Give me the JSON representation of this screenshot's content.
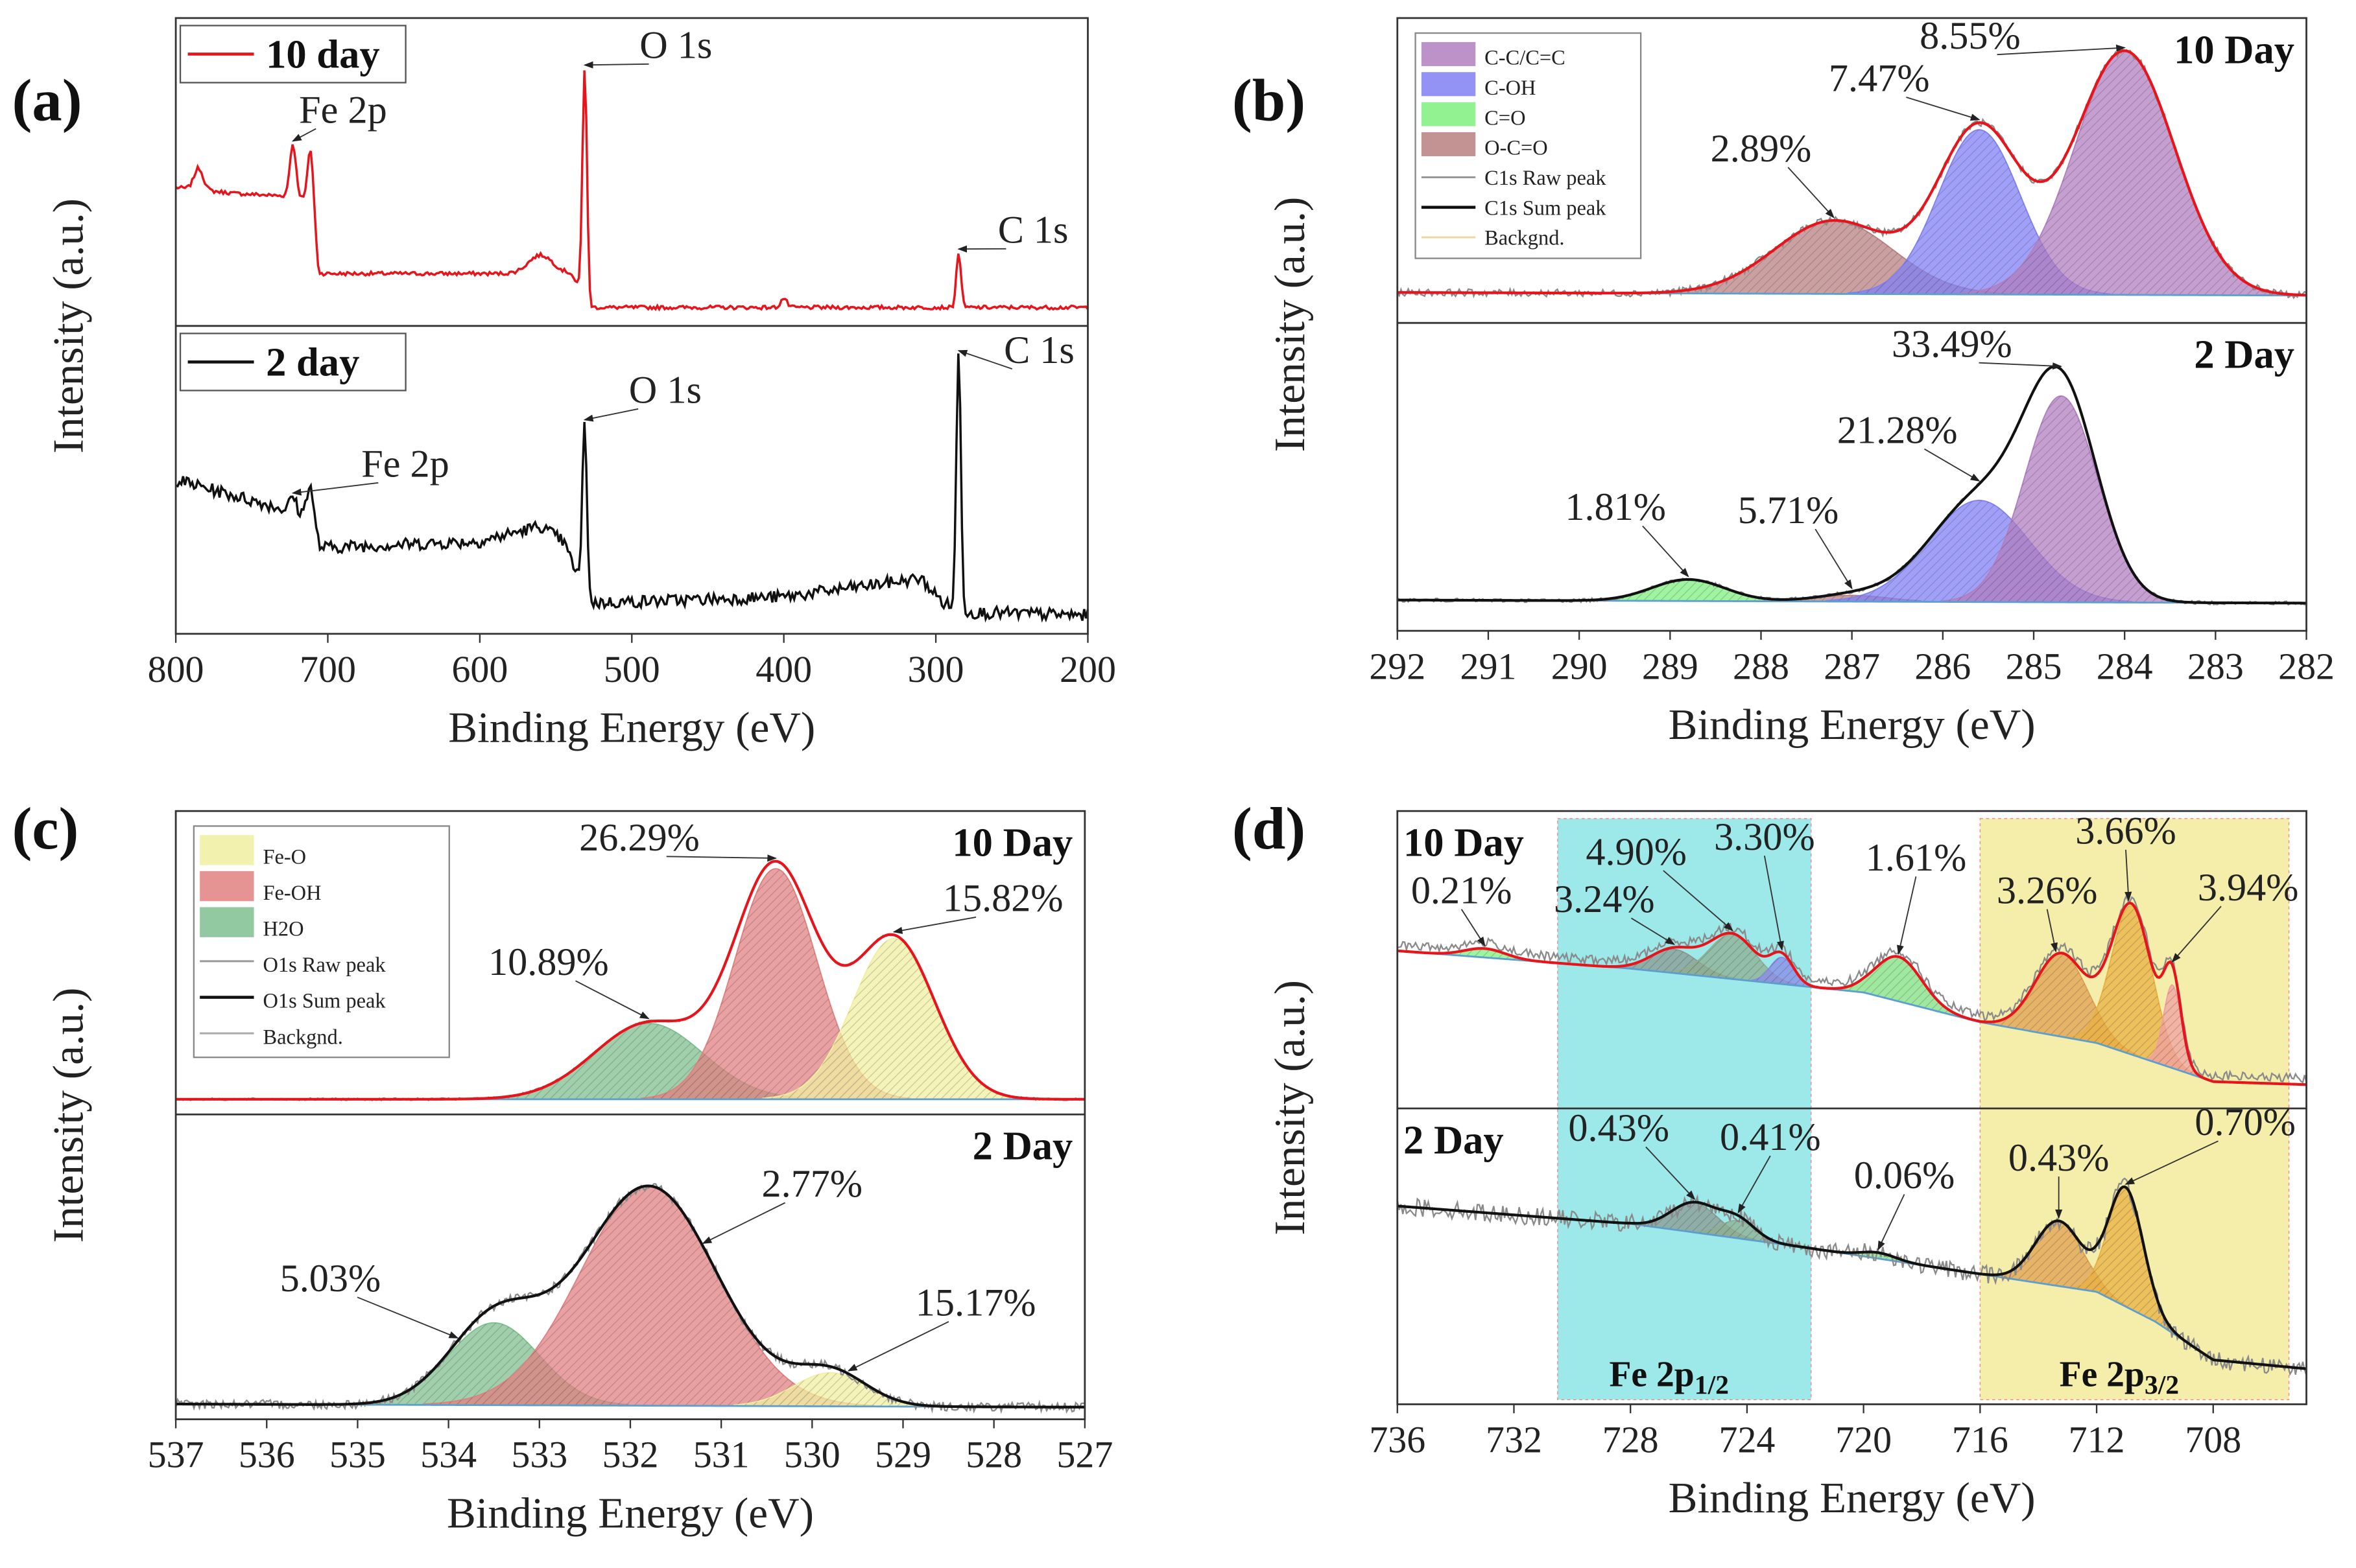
{
  "chart_data": [
    {
      "panel": "(a)",
      "type": "line",
      "xlabel": "Binding Energy (eV)",
      "ylabel": "Intensity (a.u.)",
      "xlim": [
        800,
        200
      ],
      "xticks": [
        800,
        700,
        600,
        500,
        400,
        300,
        200
      ],
      "legend": [
        {
          "name": "10 day",
          "color": "#e8141c",
          "kind": "line"
        },
        {
          "name": "2 day",
          "color": "#111111",
          "kind": "line"
        }
      ],
      "subplots": [
        {
          "name": "10 day",
          "tag": "",
          "line_color": "#e8141c",
          "noise": 0.006,
          "raw": false,
          "baseline": [
            [
              800,
              0.45
            ],
            [
              760,
              0.43
            ],
            [
              720,
              0.42
            ],
            [
              712,
              0.4
            ],
            [
              706,
              0.17
            ],
            [
              540,
              0.17
            ],
            [
              528,
              0.06
            ],
            [
              200,
              0.06
            ]
          ],
          "peaks": [
            {
              "center": 785,
              "amp": 0.07,
              "sigma": 3,
              "color": ""
            },
            {
              "center": 723,
              "amp": 0.17,
              "sigma": 2,
              "color": ""
            },
            {
              "center": 711,
              "amp": 0.2,
              "sigma": 2,
              "color": ""
            },
            {
              "center": 560,
              "amp": 0.06,
              "sigma": 8,
              "color": ""
            },
            {
              "center": 531,
              "amp": 0.75,
              "sigma": 1.5,
              "color": ""
            },
            {
              "center": 400,
              "amp": 0.03,
              "sigma": 2,
              "color": ""
            },
            {
              "center": 285,
              "amp": 0.18,
              "sigma": 1.5,
              "color": ""
            }
          ],
          "annotations": [
            {
              "text": "Fe 2p",
              "x": 690,
              "y": 0.66,
              "at": 723
            },
            {
              "text": "O 1s",
              "x": 471,
              "y": 0.87,
              "at": 531
            },
            {
              "text": "C 1s",
              "x": 236,
              "y": 0.27,
              "at": 285
            }
          ]
        },
        {
          "name": "2 day",
          "tag": "",
          "line_color": "#111111",
          "noise": 0.02,
          "raw": false,
          "baseline": [
            [
              800,
              0.5
            ],
            [
              710,
              0.38
            ],
            [
              705,
              0.28
            ],
            [
              600,
              0.3
            ],
            [
              560,
              0.35
            ],
            [
              545,
              0.3
            ],
            [
              528,
              0.1
            ],
            [
              400,
              0.12
            ],
            [
              310,
              0.18
            ],
            [
              295,
              0.1
            ],
            [
              280,
              0.07
            ],
            [
              200,
              0.06
            ]
          ],
          "peaks": [
            {
              "center": 723,
              "amp": 0.05,
              "sigma": 2,
              "color": ""
            },
            {
              "center": 712,
              "amp": 0.1,
              "sigma": 2,
              "color": ""
            },
            {
              "center": 531,
              "amp": 0.55,
              "sigma": 1.5,
              "color": ""
            },
            {
              "center": 285,
              "amp": 0.83,
              "sigma": 1.5,
              "color": ""
            }
          ],
          "annotations": [
            {
              "text": "Fe 2p",
              "x": 649,
              "y": 0.51,
              "at": 723
            },
            {
              "text": "O 1s",
              "x": 478,
              "y": 0.75,
              "at": 531
            },
            {
              "text": "C 1s",
              "x": 232,
              "y": 0.88,
              "at": 285
            }
          ]
        }
      ]
    },
    {
      "panel": "(b)",
      "type": "area",
      "xlabel": "Binding Energy (eV)",
      "ylabel": "Intensity (a.u.)",
      "xlim": [
        292,
        282
      ],
      "xticks": [
        292,
        291,
        290,
        289,
        288,
        287,
        286,
        285,
        284,
        283,
        282
      ],
      "legend": [
        {
          "name": "C-C/C=C",
          "color": "#b07fc0",
          "kind": "box"
        },
        {
          "name": "C-OH",
          "color": "#8080f5",
          "kind": "box"
        },
        {
          "name": "C=O",
          "color": "#7ff07f",
          "kind": "box"
        },
        {
          "name": "O-C=O",
          "color": "#b88080",
          "kind": "box"
        },
        {
          "name": "C1s Raw peak",
          "color": "#999999",
          "kind": "line"
        },
        {
          "name": "C1s Sum peak",
          "color": "#111111",
          "kind": "line"
        },
        {
          "name": "Backgnd.",
          "color": "#e8d8a0",
          "kind": "line"
        }
      ],
      "subplots": [
        {
          "name": "10 Day",
          "tag": "10 Day",
          "line_color": "#e8141c",
          "noise": 0.012,
          "raw": true,
          "baseline": [
            [
              292,
              0.1
            ],
            [
              282,
              0.09
            ]
          ],
          "peaks": [
            {
              "center": 287.2,
              "amp": 0.24,
              "sigma": 0.65,
              "color": "#b88080"
            },
            {
              "center": 285.6,
              "amp": 0.54,
              "sigma": 0.45,
              "color": "#8080f5"
            },
            {
              "center": 284.0,
              "amp": 0.8,
              "sigma": 0.55,
              "color": "#b07fc0"
            }
          ],
          "annotations": [
            {
              "text": "8.55%",
              "x": 285.7,
              "y": 0.9,
              "at": 284.0
            },
            {
              "text": "7.47%",
              "x": 286.7,
              "y": 0.76,
              "at": 285.6
            },
            {
              "text": "2.89%",
              "x": 288.0,
              "y": 0.53,
              "at": 287.2
            }
          ]
        },
        {
          "name": "2 Day",
          "tag": "2 Day",
          "line_color": "#111111",
          "noise": 0.006,
          "raw": true,
          "baseline": [
            [
              292,
              0.1
            ],
            [
              282,
              0.09
            ]
          ],
          "peaks": [
            {
              "center": 288.8,
              "amp": 0.07,
              "sigma": 0.4,
              "color": "#7ff07f"
            },
            {
              "center": 287.0,
              "amp": 0.02,
              "sigma": 0.4,
              "color": "#b88080"
            },
            {
              "center": 285.6,
              "amp": 0.33,
              "sigma": 0.55,
              "color": "#8080f5"
            },
            {
              "center": 284.7,
              "amp": 0.67,
              "sigma": 0.4,
              "color": "#b07fc0"
            }
          ],
          "annotations": [
            {
              "text": "33.49%",
              "x": 285.9,
              "y": 0.89,
              "at": 284.7
            },
            {
              "text": "21.28%",
              "x": 286.5,
              "y": 0.61,
              "at": 285.6
            },
            {
              "text": "1.81%",
              "x": 289.6,
              "y": 0.36,
              "at": 288.8
            },
            {
              "text": "5.71%",
              "x": 287.7,
              "y": 0.35,
              "at": 287.0
            }
          ]
        }
      ]
    },
    {
      "panel": "(c)",
      "type": "area",
      "xlabel": "Binding Energy (eV)",
      "ylabel": "Intensity (a.u.)",
      "xlim": [
        537,
        527
      ],
      "xticks": [
        537,
        536,
        535,
        534,
        533,
        532,
        531,
        530,
        529,
        528,
        527
      ],
      "legend": [
        {
          "name": "Fe-O",
          "color": "#f0f0a0",
          "kind": "box"
        },
        {
          "name": "Fe-OH",
          "color": "#e08080",
          "kind": "box"
        },
        {
          "name": "H2O",
          "color": "#7fbf8f",
          "kind": "box"
        },
        {
          "name": "O1s Raw peak",
          "color": "#999999",
          "kind": "line"
        },
        {
          "name": "O1s Sum peak",
          "color": "#111111",
          "kind": "line"
        },
        {
          "name": "Backgnd.",
          "color": "#aaaaaa",
          "kind": "line"
        }
      ],
      "subplots": [
        {
          "name": "10 Day",
          "tag": "10 Day",
          "line_color": "#e8141c",
          "noise": 0.004,
          "raw": true,
          "baseline": [
            [
              537,
              0.05
            ],
            [
              527,
              0.05
            ]
          ],
          "peaks": [
            {
              "center": 531.8,
              "amp": 0.25,
              "sigma": 0.6,
              "color": "#7fbf8f"
            },
            {
              "center": 530.4,
              "amp": 0.76,
              "sigma": 0.45,
              "color": "#e08080"
            },
            {
              "center": 529.1,
              "amp": 0.53,
              "sigma": 0.45,
              "color": "#f0f0a0"
            }
          ],
          "annotations": [
            {
              "text": "26.29%",
              "x": 531.9,
              "y": 0.87,
              "at": 530.4
            },
            {
              "text": "15.82%",
              "x": 527.9,
              "y": 0.67,
              "at": 529.1
            },
            {
              "text": "10.89%",
              "x": 532.9,
              "y": 0.46,
              "at": 531.8
            }
          ]
        },
        {
          "name": "2 Day",
          "tag": "2 Day",
          "line_color": "#111111",
          "noise": 0.015,
          "raw": true,
          "baseline": [
            [
              537,
              0.05
            ],
            [
              527.3,
              0.04
            ]
          ],
          "peaks": [
            {
              "center": 533.5,
              "amp": 0.27,
              "sigma": 0.5,
              "color": "#7fbf8f"
            },
            {
              "center": 531.8,
              "amp": 0.72,
              "sigma": 0.75,
              "color": "#e08080"
            },
            {
              "center": 529.8,
              "amp": 0.11,
              "sigma": 0.4,
              "color": "#f0f0a0"
            }
          ],
          "annotations": [
            {
              "text": "2.77%",
              "x": 530.0,
              "y": 0.73,
              "at": 531.2
            },
            {
              "text": "5.03%",
              "x": 535.3,
              "y": 0.42,
              "at": 533.9
            },
            {
              "text": "15.17%",
              "x": 528.2,
              "y": 0.34,
              "at": 529.6
            }
          ]
        }
      ]
    },
    {
      "panel": "(d)",
      "type": "area",
      "xlabel": "Binding Energy (eV)",
      "ylabel": "Intensity (a.u.)",
      "xlim": [
        736,
        704.8
      ],
      "xticks": [
        736,
        732,
        728,
        724,
        720,
        716,
        712,
        708
      ],
      "legend": [],
      "bands": [
        {
          "label": "Fe 2p",
          "sub": "1/2",
          "from": 730.5,
          "to": 721.8,
          "color": "#9de9e9"
        },
        {
          "label": "Fe 2p",
          "sub": "3/2",
          "from": 716,
          "to": 705.4,
          "color": "#f5eeaa"
        }
      ],
      "subplots": [
        {
          "name": "10 Day",
          "tag": "10 Day",
          "line_color": "#e8141c",
          "noise": 0.015,
          "raw": true,
          "baseline": [
            [
              736,
              0.53
            ],
            [
              728,
              0.47
            ],
            [
              720,
              0.39
            ],
            [
              716,
              0.29
            ],
            [
              712,
              0.22
            ],
            [
              708,
              0.09
            ],
            [
              704.8,
              0.08
            ]
          ],
          "peaks": [
            {
              "center": 733,
              "amp": 0.03,
              "sigma": 0.7,
              "color": "#7ff07f"
            },
            {
              "center": 726.5,
              "amp": 0.08,
              "sigma": 0.8,
              "color": "#8a9a90"
            },
            {
              "center": 724.5,
              "amp": 0.15,
              "sigma": 0.8,
              "color": "#8fae90"
            },
            {
              "center": 722.8,
              "amp": 0.09,
              "sigma": 0.4,
              "color": "#8a8ae8"
            },
            {
              "center": 718.8,
              "amp": 0.15,
              "sigma": 0.8,
              "color": "#7fe07f"
            },
            {
              "center": 713.2,
              "amp": 0.28,
              "sigma": 0.9,
              "color": "#e0a050"
            },
            {
              "center": 710.8,
              "amp": 0.5,
              "sigma": 0.7,
              "color": "#e8b040"
            },
            {
              "center": 709.4,
              "amp": 0.28,
              "sigma": 0.3,
              "color": "#f0a0a0"
            }
          ],
          "annotations": [
            {
              "text": "0.21%",
              "x": 733.8,
              "y": 0.69,
              "at": 733
            },
            {
              "text": "3.24%",
              "x": 728.9,
              "y": 0.66,
              "at": 726.5
            },
            {
              "text": "4.90%",
              "x": 727.8,
              "y": 0.82,
              "at": 724.5
            },
            {
              "text": "3.30%",
              "x": 723.4,
              "y": 0.87,
              "at": 722.8
            },
            {
              "text": "1.61%",
              "x": 718.2,
              "y": 0.8,
              "at": 718.8
            },
            {
              "text": "3.26%",
              "x": 713.7,
              "y": 0.69,
              "at": 713.4
            },
            {
              "text": "3.66%",
              "x": 711.0,
              "y": 0.89,
              "at": 710.9
            },
            {
              "text": "3.94%",
              "x": 706.8,
              "y": 0.7,
              "at": 709.4
            }
          ]
        },
        {
          "name": "2 Day",
          "tag": "2 Day",
          "line_color": "#111111",
          "noise": 0.03,
          "raw": true,
          "baseline": [
            [
              736,
              0.67
            ],
            [
              728,
              0.61
            ],
            [
              722,
              0.53
            ],
            [
              716,
              0.44
            ],
            [
              712,
              0.38
            ],
            [
              710,
              0.28
            ],
            [
              708,
              0.15
            ],
            [
              704.8,
              0.12
            ]
          ],
          "peaks": [
            {
              "center": 725.8,
              "amp": 0.1,
              "sigma": 0.8,
              "color": "#8a9a90"
            },
            {
              "center": 724.3,
              "amp": 0.06,
              "sigma": 0.6,
              "color": "#8fae90"
            },
            {
              "center": 719.5,
              "amp": 0.02,
              "sigma": 0.6,
              "color": "#7fe07f"
            },
            {
              "center": 713.3,
              "amp": 0.22,
              "sigma": 0.8,
              "color": "#e0a050"
            },
            {
              "center": 711.0,
              "amp": 0.4,
              "sigma": 0.6,
              "color": "#e8b040"
            }
          ],
          "annotations": [
            {
              "text": "0.43%",
              "x": 728.4,
              "y": 0.89,
              "at": 725.8
            },
            {
              "text": "0.41%",
              "x": 723.2,
              "y": 0.86,
              "at": 724.3
            },
            {
              "text": "0.06%",
              "x": 718.6,
              "y": 0.73,
              "at": 719.5
            },
            {
              "text": "0.43%",
              "x": 713.3,
              "y": 0.79,
              "at": 713.3
            },
            {
              "text": "0.70%",
              "x": 706.9,
              "y": 0.91,
              "at": 711.0
            }
          ]
        }
      ]
    }
  ]
}
